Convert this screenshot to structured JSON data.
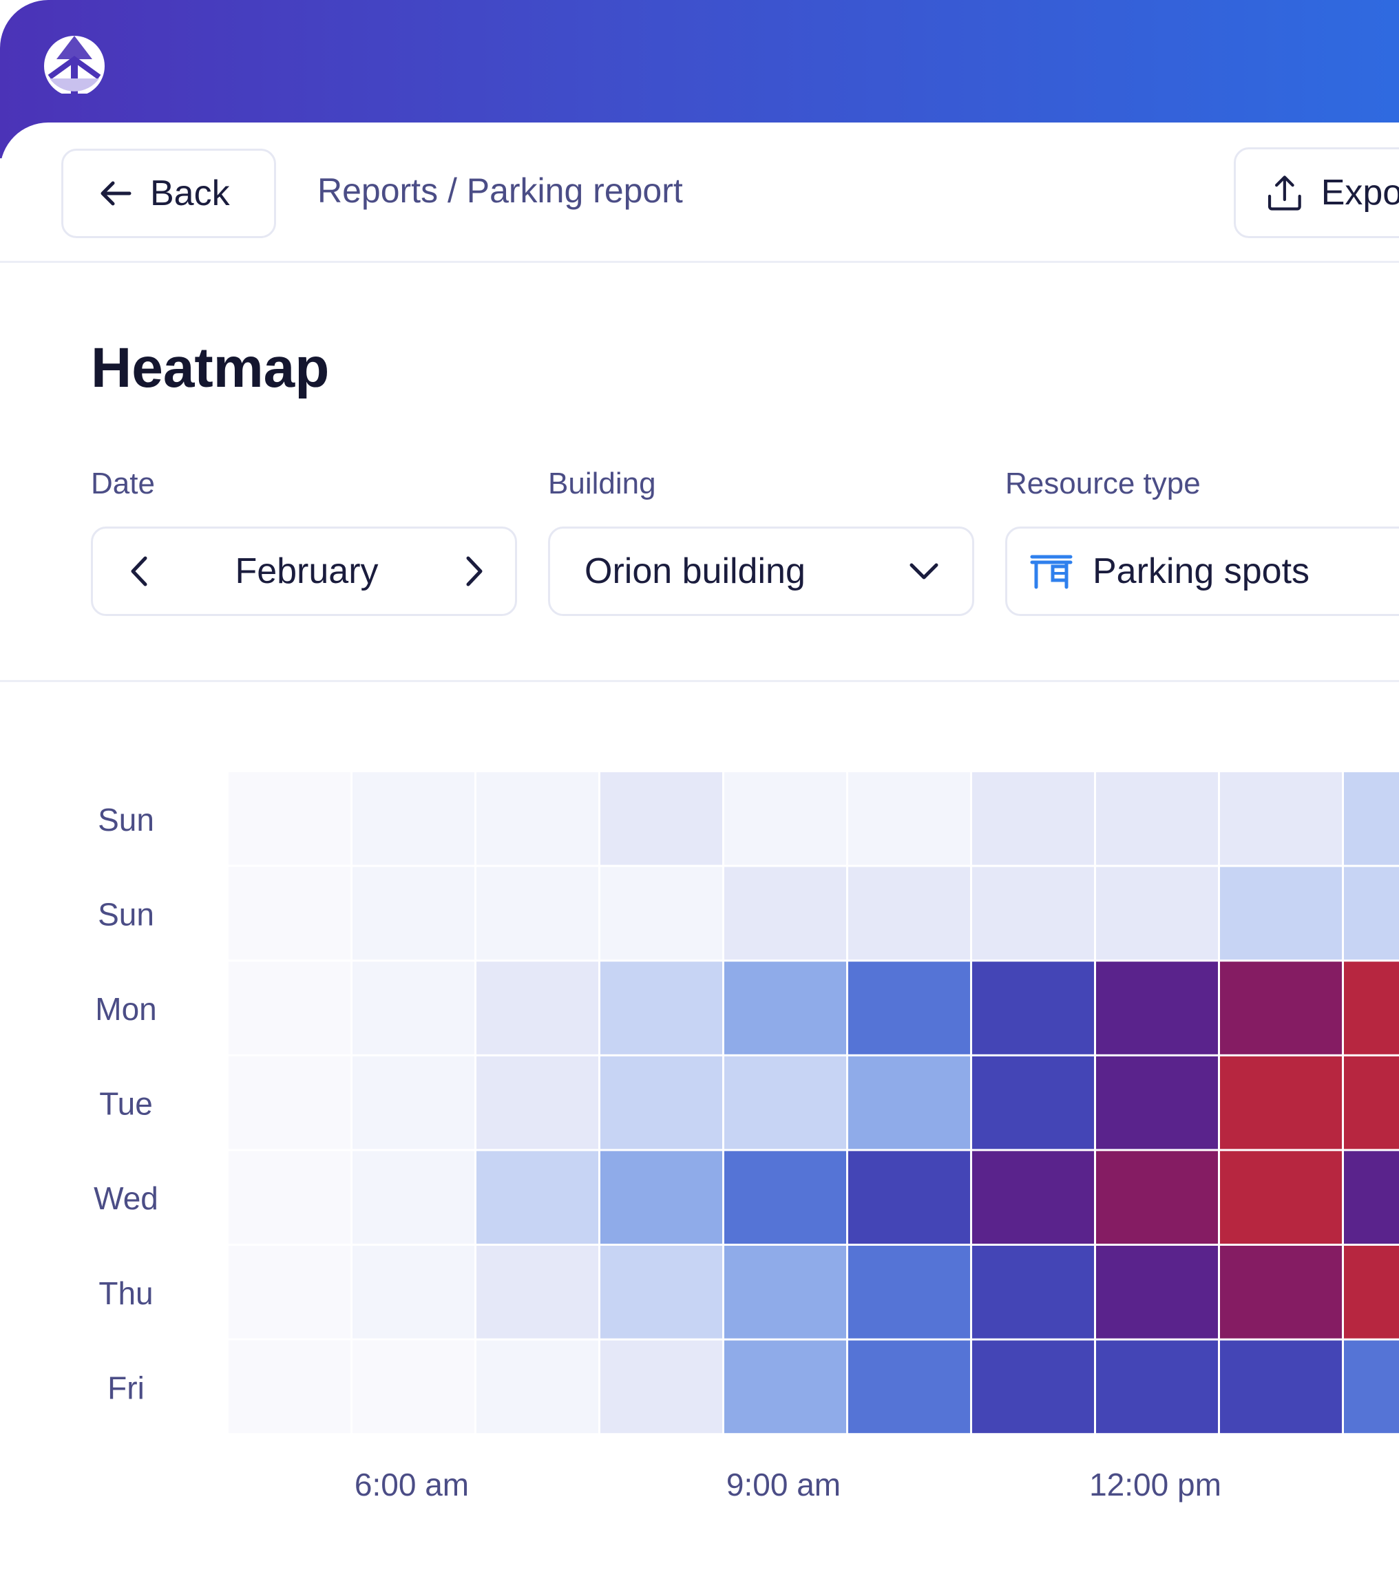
{
  "header": {
    "back_label": "Back",
    "breadcrumb": "Reports / Parking report",
    "export_label": "Export"
  },
  "page": {
    "title": "Heatmap"
  },
  "filters": {
    "date": {
      "label": "Date",
      "value": "February"
    },
    "building": {
      "label": "Building",
      "value": "Orion building"
    },
    "resource_type": {
      "label": "Resource type",
      "value": "Parking spots"
    }
  },
  "colors": {
    "gradient_start": "#4b33b7",
    "gradient_end": "#2f6ae0",
    "accent_icon": "#2f80ed",
    "text_muted": "#4b4d86"
  },
  "chart_data": {
    "type": "heatmap",
    "rows": [
      "Sun",
      "Sun",
      "Mon",
      "Tue",
      "Wed",
      "Thu",
      "Fri"
    ],
    "x_tick_labels": [
      "6:00 am",
      "9:00 am",
      "12:00 pm"
    ],
    "columns_visible": 10,
    "values": [
      [
        0,
        1,
        1,
        2,
        1,
        1,
        2,
        2,
        2,
        3
      ],
      [
        0,
        1,
        1,
        1,
        2,
        2,
        2,
        2,
        3,
        3
      ],
      [
        0,
        1,
        2,
        3,
        4,
        5,
        6,
        7,
        8,
        9
      ],
      [
        0,
        1,
        2,
        3,
        3,
        4,
        6,
        7,
        9,
        9
      ],
      [
        0,
        1,
        3,
        4,
        5,
        6,
        7,
        8,
        9,
        7
      ],
      [
        0,
        1,
        2,
        3,
        4,
        5,
        6,
        7,
        8,
        9
      ],
      [
        0,
        0,
        1,
        2,
        4,
        5,
        6,
        6,
        6,
        5
      ]
    ],
    "palette": [
      "#f9f9fd",
      "#f3f5fc",
      "#e5e8f8",
      "#c7d4f4",
      "#8fabe9",
      "#5574d6",
      "#4445b6",
      "#5a238c",
      "#851c63",
      "#b72640"
    ]
  }
}
